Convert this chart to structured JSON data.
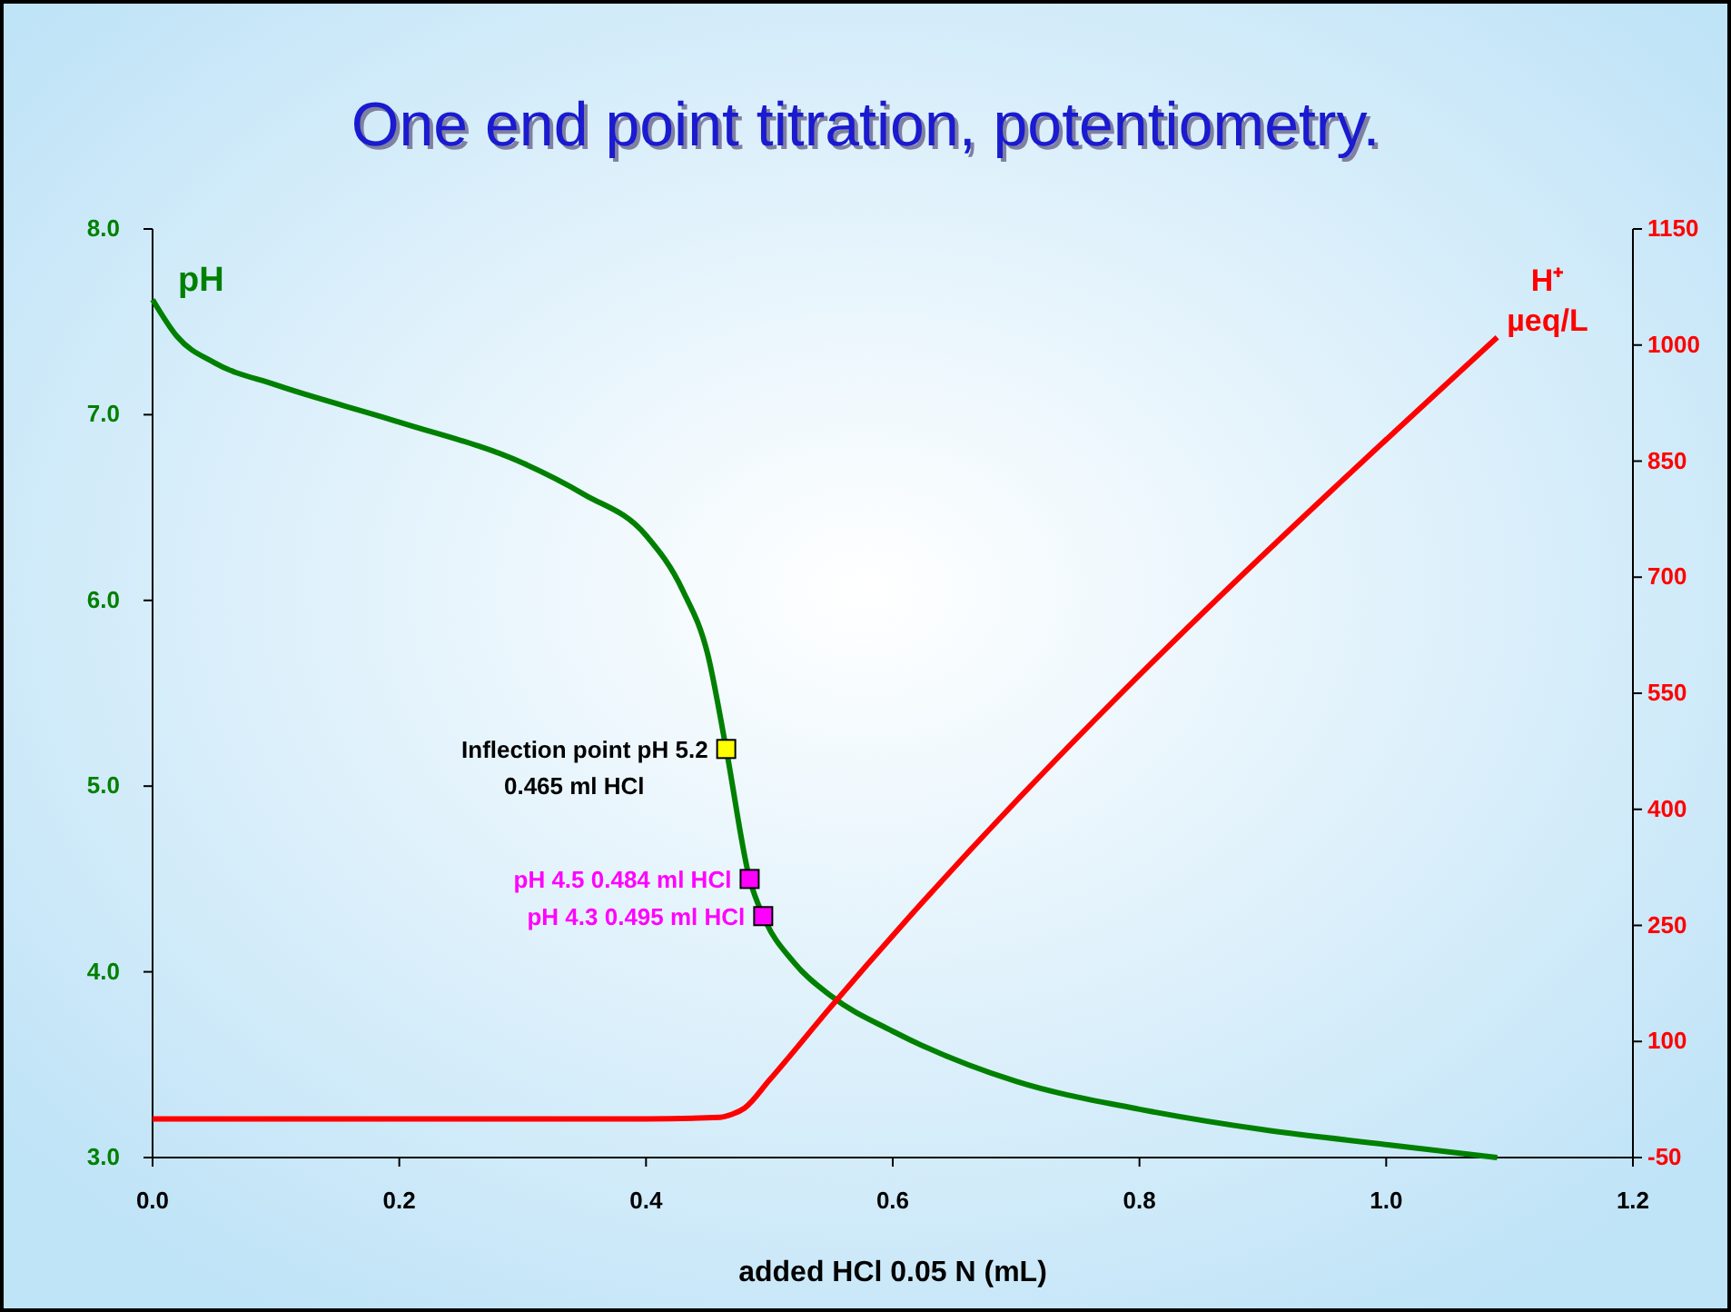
{
  "chart_data": {
    "type": "line",
    "title": "One end point titration, potentiometry.",
    "xlabel": "added HCl 0.05 N (mL)",
    "ylabel": "pH",
    "y2label": "H⁺ µeq/L",
    "xlim": [
      0,
      1.2
    ],
    "xticks": [
      {
        "value": 0,
        "label": "0.0"
      },
      0.2,
      0.4,
      0.6,
      0.8,
      {
        "value": 1,
        "label": "1.0"
      },
      1.2
    ],
    "ylim": [
      3,
      8
    ],
    "yticks": [
      {
        "value": 3,
        "label": "3.0"
      },
      {
        "value": 4,
        "label": "4.0"
      },
      {
        "value": 5,
        "label": "5.0"
      },
      {
        "value": 6,
        "label": "6.0"
      },
      {
        "value": 7,
        "label": "7.0"
      },
      {
        "value": 8,
        "label": "8.0"
      }
    ],
    "y2lim": [
      -50,
      1150
    ],
    "y2ticks": [
      -50,
      100,
      250,
      400,
      550,
      700,
      850,
      1000,
      1150
    ],
    "grid": false,
    "series": [
      {
        "color": "#008000",
        "x": [
          0,
          0.02,
          0.05,
          0.1,
          0.2,
          0.3,
          0.35,
          0.4,
          0.43,
          0.45,
          0.465,
          0.484,
          0.495,
          0.52,
          0.55,
          0.6,
          0.7,
          0.8,
          0.9,
          1.0,
          1.09
        ],
        "values": [
          7.62,
          7.42,
          7.28,
          7.16,
          6.96,
          6.74,
          6.57,
          6.35,
          6.05,
          5.71,
          5.2,
          4.5,
          4.3,
          4.05,
          3.87,
          3.68,
          3.41,
          3.26,
          3.15,
          3.07,
          3.0
        ]
      },
      {
        "type": "line",
        "axis": "y2",
        "color": "#ff0000",
        "x": [
          0,
          0.2,
          0.4,
          0.46,
          0.47,
          0.48,
          0.5,
          0.55,
          1.09
        ],
        "values": [
          0,
          0,
          0,
          2,
          6,
          14,
          50,
          145,
          1010
        ]
      },
      {
        "type": "scatter",
        "marker": "square",
        "colors": [
          "#ffff00",
          "#ff00ff",
          "#ff00ff"
        ],
        "x": [
          0.465,
          0.484,
          0.495
        ],
        "values": [
          5.2,
          4.5,
          4.3
        ]
      }
    ],
    "annotations": [
      {
        "text": "Inflection point pH 5.2\n0.465 ml HCl",
        "x": 0.465,
        "y": 5.2
      },
      {
        "text": "pH 4.5 0.484 ml HCl",
        "x": 0.484,
        "y": 4.5
      },
      {
        "text": "pH 4.3 0.495 ml HCl",
        "x": 0.495,
        "y": 4.3
      }
    ]
  }
}
